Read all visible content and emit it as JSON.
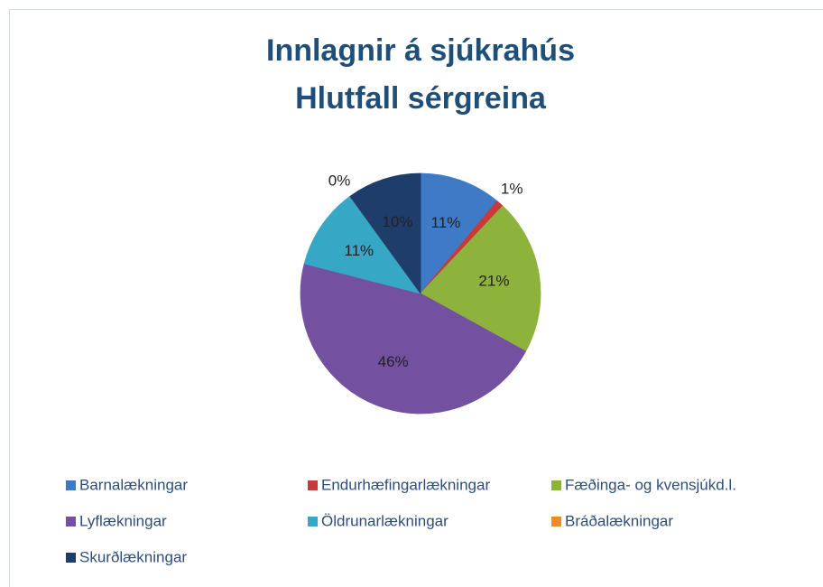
{
  "chart_data": {
    "type": "pie",
    "title": [
      "Innlagnir á sjúkrahús",
      "Hlutfall sérgreina"
    ],
    "categories": [
      "Barnalækningar",
      "Endurhæfingarlækningar",
      "Fæðinga- og kvensjúkd.l.",
      "Lyflækningar",
      "Öldrunarlækningar",
      "Bráðalækningar",
      "Skurðlækningar"
    ],
    "values": [
      11,
      1,
      21,
      46,
      11,
      0,
      10
    ],
    "value_labels": [
      "11%",
      "1%",
      "21%",
      "46%",
      "11%",
      "0%",
      "10%"
    ],
    "colors": [
      "#3f7ac6",
      "#c9383a",
      "#8db33c",
      "#7350a0",
      "#36a8c6",
      "#f08a24",
      "#1f3d6b"
    ],
    "legend": "bottom"
  }
}
